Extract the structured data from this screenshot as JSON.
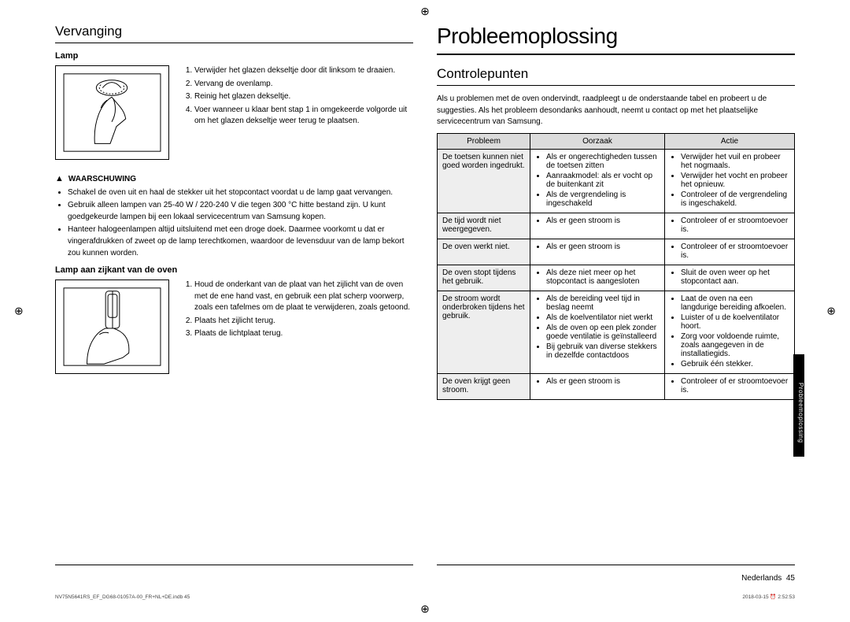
{
  "left": {
    "section": "Vervanging",
    "sub1": "Lamp",
    "steps1": [
      "Verwijder het glazen dekseltje door dit linksom te draaien.",
      "Vervang de ovenlamp.",
      "Reinig het glazen dekseltje.",
      "Voer wanneer u klaar bent stap 1 in omgekeerde volgorde uit om het glazen dekseltje weer terug te plaatsen."
    ],
    "warn_label": "WAARSCHUWING",
    "warn_bullets": [
      "Schakel de oven uit en haal de stekker uit het stopcontact voordat u de lamp gaat vervangen.",
      "Gebruik alleen lampen van 25-40 W / 220-240 V die tegen 300 °C hitte bestand zijn. U kunt goedgekeurde lampen bij een lokaal servicecentrum van Samsung kopen.",
      "Hanteer halogeenlampen altijd uitsluitend met een droge doek. Daarmee voorkomt u dat er vingerafdrukken of zweet op de lamp terechtkomen, waardoor de levensduur van de lamp bekort zou kunnen worden."
    ],
    "sub2": "Lamp aan zijkant van de oven",
    "steps2": [
      "Houd de onderkant van de plaat van het zijlicht van de oven met de ene hand vast, en gebruik een plat scherp voorwerp, zoals een tafelmes om de plaat te verwijderen, zoals getoond.",
      "Plaats het zijlicht terug.",
      "Plaats de lichtplaat terug."
    ]
  },
  "right": {
    "title": "Probleemoplossing",
    "section": "Controlepunten",
    "intro": "Als u problemen met de oven ondervindt, raadpleegt u de onderstaande tabel en probeert u de suggesties. Als het probleem desondanks aanhoudt, neemt u contact op met het plaatselijke servicecentrum van Samsung.",
    "headers": [
      "Probleem",
      "Oorzaak",
      "Actie"
    ],
    "rows": [
      {
        "p": "De toetsen kunnen niet goed worden ingedrukt.",
        "c": [
          "Als er ongerechtigheden tussen de toetsen zitten",
          "Aanraakmodel: als er vocht op de buitenkant zit",
          "Als de vergrendeling is ingeschakeld"
        ],
        "a": [
          "Verwijder het vuil en probeer het nogmaals.",
          "Verwijder het vocht en probeer het opnieuw.",
          "Controleer of de vergrendeling is ingeschakeld."
        ]
      },
      {
        "p": "De tijd wordt niet weergegeven.",
        "c": [
          "Als er geen stroom is"
        ],
        "a": [
          "Controleer of er stroomtoevoer is."
        ]
      },
      {
        "p": "De oven werkt niet.",
        "c": [
          "Als er geen stroom is"
        ],
        "a": [
          "Controleer of er stroomtoevoer is."
        ]
      },
      {
        "p": "De oven stopt tijdens het gebruik.",
        "c": [
          "Als deze niet meer op het stopcontact is aangesloten"
        ],
        "a": [
          "Sluit de oven weer op het stopcontact aan."
        ]
      },
      {
        "p": "De stroom wordt onderbroken tijdens het gebruik.",
        "c": [
          "Als de bereiding veel tijd in beslag neemt",
          "Als de koelventilator niet werkt",
          "Als de oven op een plek zonder goede ventilatie is geïnstalleerd",
          "Bij gebruik van diverse stekkers in dezelfde contactdoos"
        ],
        "a": [
          "Laat de oven na een langdurige bereiding afkoelen.",
          "Luister of u de koelventilator hoort.",
          "Zorg voor voldoende ruimte, zoals aangegeven in de installatiegids.",
          "Gebruik één stekker."
        ]
      },
      {
        "p": "De oven krijgt geen stroom.",
        "c": [
          "Als er geen stroom is"
        ],
        "a": [
          "Controleer of er stroomtoevoer is."
        ]
      }
    ]
  },
  "side_tab": "Probleemoplossing",
  "page_label": "Nederlands",
  "page_num": "45",
  "foot_left": "NV75N5641RS_EF_DG68-01057A-00_FR+NL+DE.indb   45",
  "foot_right": "2018-03-15   ⏰ 2:52:53"
}
